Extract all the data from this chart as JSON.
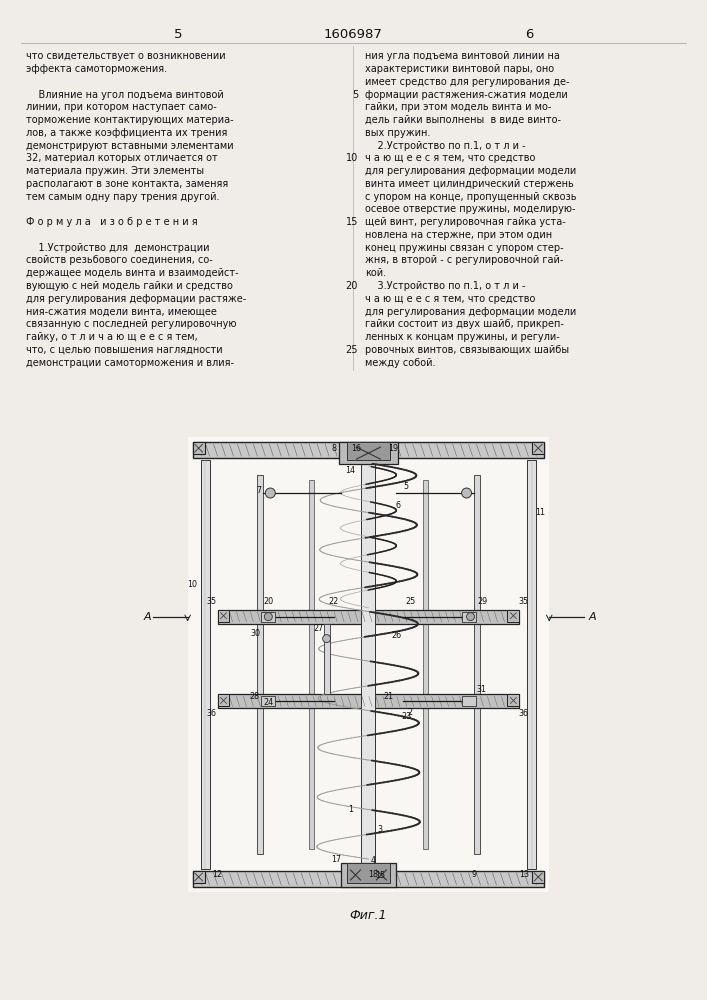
{
  "page_width": 7.07,
  "page_height": 10.0,
  "bg_color": "#f0ede8",
  "header_page_left": "5",
  "header_patent": "1606987",
  "header_page_right": "6",
  "col1_text": [
    "что свидетельствует о возникновении",
    "эффекта самоторможения.",
    "",
    "    Влияние на угол подъема винтовой",
    "линии, при котором наступает само-",
    "торможение контактирующих материа-",
    "лов, а также коэффициента их трения",
    "демонстрируют вставными элементами",
    "32, материал которых отличается от",
    "материала пружин. Эти элементы",
    "располагают в зоне контакта, заменяя",
    "тем самым одну пару трения другой.",
    "",
    "Ф о р м у л а   и з о б р е т е н и я",
    "",
    "    1.Устройство для  демонстрации",
    "свойств резьбового соединения, со-",
    "держащее модель винта и взаимодейст-",
    "вующую с ней модель гайки и средство",
    "для регулирования деформации растяже-",
    "ния-сжатия модели винта, имеющее",
    "связанную с последней регулировочную",
    "гайку, о т л и ч а ю щ е е с я тем,",
    "что, с целью повышения наглядности",
    "демонстрации самоторможения и влия-"
  ],
  "col2_lines": [
    "ния угла подъема винтовой линии на",
    "характеристики винтовой пары, оно",
    "имеет средство для регулирования де-",
    "формации растяжения-сжатия модели",
    "гайки, при этом модель винта и мо-",
    "дель гайки выполнены  в виде винто-",
    "вых пружин.",
    "    2.Устройство по п.1, о т л и -",
    "ч а ю щ е е с я тем, что средство",
    "для регулирования деформации модели",
    "винта имеет цилиндрический стержень",
    "с упором на конце, пропущенный сквозь",
    "осевое отверстие пружины, моделирую-",
    "щей винт, регулировочная гайка уста-",
    "новлена на стержне, при этом один",
    "конец пружины связан с упором стер-",
    "жня, в второй - с регулировочной гай-",
    "кой.",
    "    3.Устройство по п.1, о т л и -",
    "ч а ю щ е е с я тем, что средство",
    "для регулирования деформации модели",
    "гайки состоит из двух шайб, прикреп-",
    "ленных к концам пружины, и регули-",
    "ровочных винтов, связывающих шайбы",
    "между собой."
  ],
  "col2_line_numbers": [
    null,
    null,
    null,
    "5",
    null,
    null,
    null,
    null,
    "10",
    null,
    null,
    null,
    null,
    "15",
    null,
    null,
    null,
    null,
    "20",
    null,
    null,
    null,
    null,
    "25",
    null
  ],
  "fig_caption": "Фиг.1"
}
